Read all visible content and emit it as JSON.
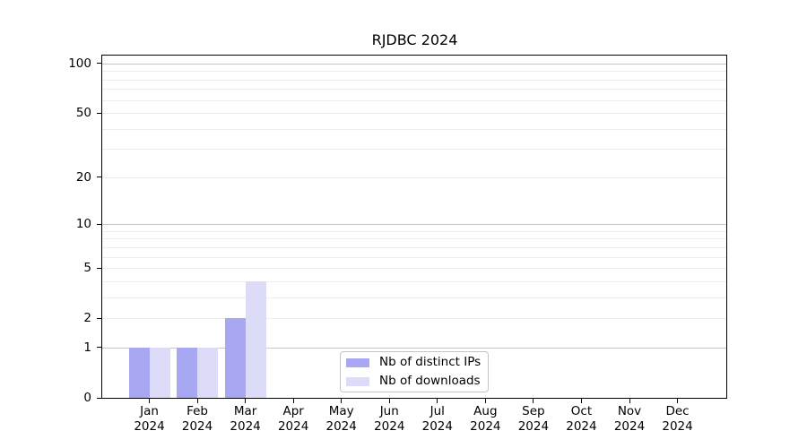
{
  "chart_data": {
    "type": "bar",
    "title": "RJDBC 2024",
    "x_categories": [
      "Jan",
      "Feb",
      "Mar",
      "Apr",
      "May",
      "Jun",
      "Jul",
      "Aug",
      "Sep",
      "Oct",
      "Nov",
      "Dec"
    ],
    "x_year": "2024",
    "series": [
      {
        "name": "Nb of distinct IPs",
        "color": "#a8a8f2",
        "values": [
          1,
          1,
          2,
          0,
          0,
          0,
          0,
          0,
          0,
          0,
          0,
          0
        ]
      },
      {
        "name": "Nb of downloads",
        "color": "#dcdcf8",
        "values": [
          1,
          1,
          4,
          0,
          0,
          0,
          0,
          0,
          0,
          0,
          0,
          0
        ]
      }
    ],
    "y_axis": {
      "scale": "log1p",
      "tick_labels": [
        0,
        1,
        2,
        5,
        10,
        20,
        50,
        100
      ],
      "gridlines_minor": [
        2,
        3,
        4,
        5,
        6,
        7,
        8,
        9,
        20,
        30,
        40,
        50,
        60,
        70,
        80,
        90
      ],
      "gridlines_major": [
        1,
        10,
        100
      ],
      "range_top": 113,
      "ylim": [
        0,
        113
      ],
      "grid": "on"
    },
    "legend": {
      "position": "bottom-center",
      "entries": [
        "Nb of distinct IPs",
        "Nb of downloads"
      ]
    }
  },
  "colors": {
    "bar_distinct_ips": "#a8a8f2",
    "bar_downloads": "#dcdcf8",
    "grid_minor": "#ececec",
    "grid_major": "#c6c6c6",
    "axis": "#000000",
    "legend_border": "#c4c4c4",
    "background": "#ffffff"
  }
}
